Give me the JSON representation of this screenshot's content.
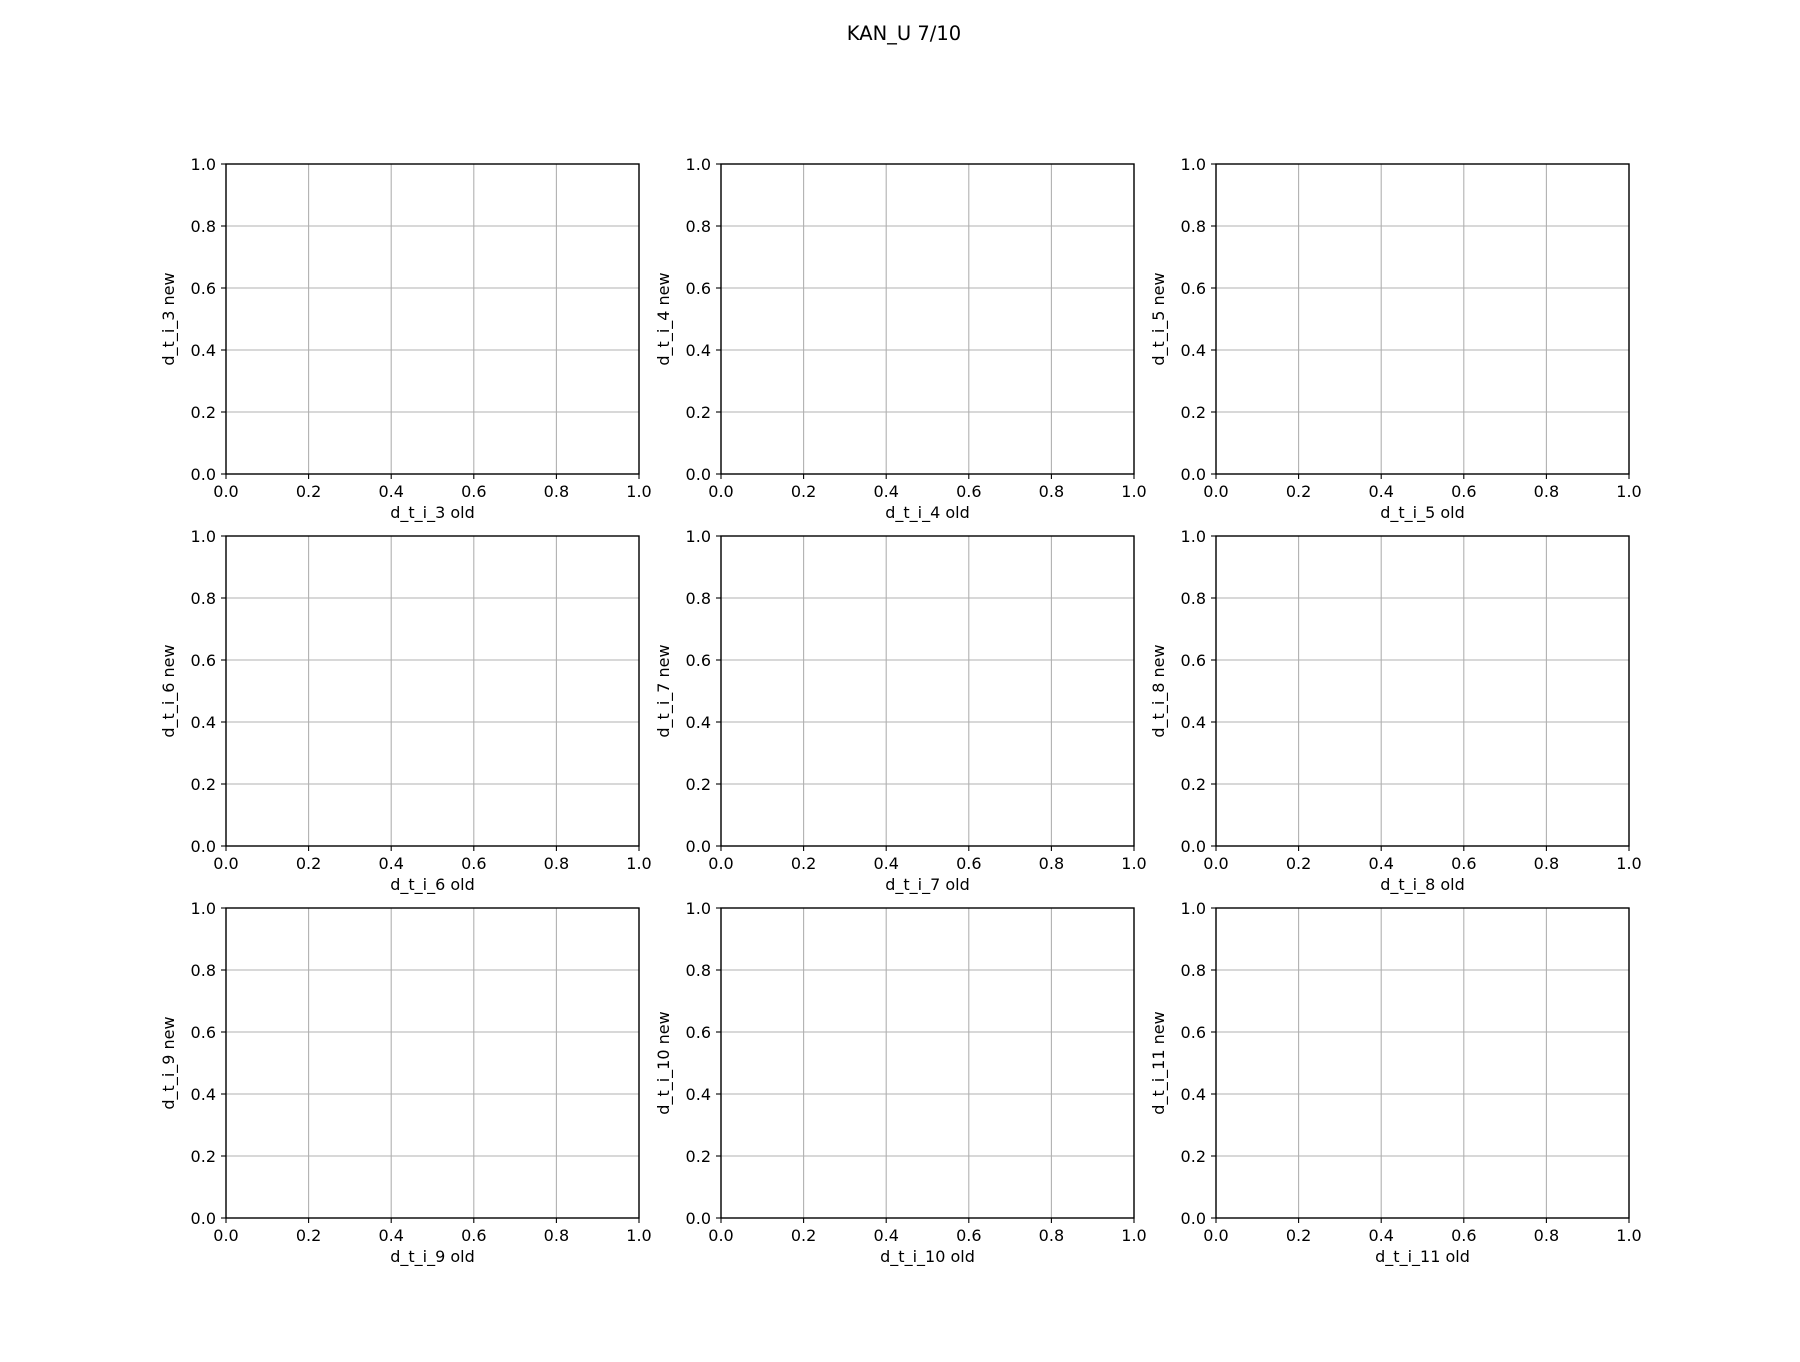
{
  "figure": {
    "title": "KAN_U 7/10"
  },
  "colors": {
    "background": "#ffffff",
    "axes": "#000000",
    "grid": "#b0b0b0",
    "text": "#000000"
  },
  "chart_data": [
    {
      "type": "scatter",
      "xlabel": "d_t_i_3 old",
      "ylabel": "d_t_i_3 new",
      "xlim": [
        0.0,
        1.0
      ],
      "ylim": [
        0.0,
        1.0
      ],
      "xticks": [
        "0.0",
        "0.2",
        "0.4",
        "0.6",
        "0.8",
        "1.0"
      ],
      "yticks": [
        "0.0",
        "0.2",
        "0.4",
        "0.6",
        "0.8",
        "1.0"
      ],
      "grid": true,
      "x": [],
      "y": []
    },
    {
      "type": "scatter",
      "xlabel": "d_t_i_4 old",
      "ylabel": "d_t_i_4 new",
      "xlim": [
        0.0,
        1.0
      ],
      "ylim": [
        0.0,
        1.0
      ],
      "xticks": [
        "0.0",
        "0.2",
        "0.4",
        "0.6",
        "0.8",
        "1.0"
      ],
      "yticks": [
        "0.0",
        "0.2",
        "0.4",
        "0.6",
        "0.8",
        "1.0"
      ],
      "grid": true,
      "x": [],
      "y": []
    },
    {
      "type": "scatter",
      "xlabel": "d_t_i_5 old",
      "ylabel": "d_t_i_5 new",
      "xlim": [
        0.0,
        1.0
      ],
      "ylim": [
        0.0,
        1.0
      ],
      "xticks": [
        "0.0",
        "0.2",
        "0.4",
        "0.6",
        "0.8",
        "1.0"
      ],
      "yticks": [
        "0.0",
        "0.2",
        "0.4",
        "0.6",
        "0.8",
        "1.0"
      ],
      "grid": true,
      "x": [],
      "y": []
    },
    {
      "type": "scatter",
      "xlabel": "d_t_i_6 old",
      "ylabel": "d_t_i_6 new",
      "xlim": [
        0.0,
        1.0
      ],
      "ylim": [
        0.0,
        1.0
      ],
      "xticks": [
        "0.0",
        "0.2",
        "0.4",
        "0.6",
        "0.8",
        "1.0"
      ],
      "yticks": [
        "0.0",
        "0.2",
        "0.4",
        "0.6",
        "0.8",
        "1.0"
      ],
      "grid": true,
      "x": [],
      "y": []
    },
    {
      "type": "scatter",
      "xlabel": "d_t_i_7 old",
      "ylabel": "d_t_i_7 new",
      "xlim": [
        0.0,
        1.0
      ],
      "ylim": [
        0.0,
        1.0
      ],
      "xticks": [
        "0.0",
        "0.2",
        "0.4",
        "0.6",
        "0.8",
        "1.0"
      ],
      "yticks": [
        "0.0",
        "0.2",
        "0.4",
        "0.6",
        "0.8",
        "1.0"
      ],
      "grid": true,
      "x": [],
      "y": []
    },
    {
      "type": "scatter",
      "xlabel": "d_t_i_8 old",
      "ylabel": "d_t_i_8 new",
      "xlim": [
        0.0,
        1.0
      ],
      "ylim": [
        0.0,
        1.0
      ],
      "xticks": [
        "0.0",
        "0.2",
        "0.4",
        "0.6",
        "0.8",
        "1.0"
      ],
      "yticks": [
        "0.0",
        "0.2",
        "0.4",
        "0.6",
        "0.8",
        "1.0"
      ],
      "grid": true,
      "x": [],
      "y": []
    },
    {
      "type": "scatter",
      "xlabel": "d_t_i_9 old",
      "ylabel": "d_t_i_9 new",
      "xlim": [
        0.0,
        1.0
      ],
      "ylim": [
        0.0,
        1.0
      ],
      "xticks": [
        "0.0",
        "0.2",
        "0.4",
        "0.6",
        "0.8",
        "1.0"
      ],
      "yticks": [
        "0.0",
        "0.2",
        "0.4",
        "0.6",
        "0.8",
        "1.0"
      ],
      "grid": true,
      "x": [],
      "y": []
    },
    {
      "type": "scatter",
      "xlabel": "d_t_i_10 old",
      "ylabel": "d_t_i_10 new",
      "xlim": [
        0.0,
        1.0
      ],
      "ylim": [
        0.0,
        1.0
      ],
      "xticks": [
        "0.0",
        "0.2",
        "0.4",
        "0.6",
        "0.8",
        "1.0"
      ],
      "yticks": [
        "0.0",
        "0.2",
        "0.4",
        "0.6",
        "0.8",
        "1.0"
      ],
      "grid": true,
      "x": [],
      "y": []
    },
    {
      "type": "scatter",
      "xlabel": "d_t_i_11 old",
      "ylabel": "d_t_i_11 new",
      "xlim": [
        0.0,
        1.0
      ],
      "ylim": [
        0.0,
        1.0
      ],
      "xticks": [
        "0.0",
        "0.2",
        "0.4",
        "0.6",
        "0.8",
        "1.0"
      ],
      "yticks": [
        "0.0",
        "0.2",
        "0.4",
        "0.6",
        "0.8",
        "1.0"
      ],
      "grid": true,
      "x": [],
      "y": []
    }
  ]
}
